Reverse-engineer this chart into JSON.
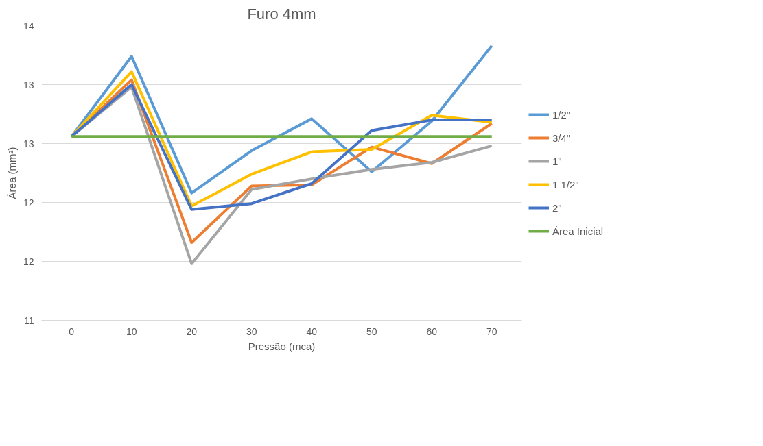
{
  "chart_data": {
    "type": "line",
    "title": "Furo 4mm",
    "xlabel": "Pressão (mca)",
    "ylabel": "Área (mm²)",
    "categories": [
      "0",
      "10",
      "20",
      "30",
      "40",
      "50",
      "60",
      "70"
    ],
    "series": [
      {
        "name": "1/2\"",
        "color": "#5b9bd5",
        "values": [
          12.81,
          13.49,
          12.33,
          12.69,
          12.96,
          12.51,
          12.94,
          13.58
        ]
      },
      {
        "name": "3/4\"",
        "color": "#ed7d31",
        "values": [
          12.81,
          13.29,
          11.91,
          12.39,
          12.4,
          12.72,
          12.58,
          12.92
        ]
      },
      {
        "name": "1\"",
        "color": "#a5a5a5",
        "values": [
          12.81,
          13.23,
          11.73,
          12.36,
          12.45,
          12.53,
          12.59,
          12.73
        ]
      },
      {
        "name": "1 1/2\"",
        "color": "#ffc000",
        "values": [
          12.81,
          13.36,
          12.22,
          12.49,
          12.68,
          12.7,
          12.99,
          12.93
        ]
      },
      {
        "name": "2\"",
        "color": "#4472c4",
        "values": [
          12.81,
          13.25,
          12.19,
          12.24,
          12.41,
          12.86,
          12.95,
          12.95
        ]
      },
      {
        "name": "Área Inicial",
        "color": "#70ad47",
        "values": [
          12.81,
          12.81,
          12.81,
          12.81,
          12.81,
          12.81,
          12.81,
          12.81
        ]
      }
    ],
    "ylim": [
      11.25,
      13.75
    ],
    "yticks": [
      {
        "value": 11.25,
        "label": "11"
      },
      {
        "value": 11.75,
        "label": "12"
      },
      {
        "value": 12.25,
        "label": "12"
      },
      {
        "value": 12.75,
        "label": "13"
      },
      {
        "value": 13.25,
        "label": "13"
      },
      {
        "value": 13.75,
        "label": "14"
      }
    ],
    "grid": "y",
    "legend": "right",
    "marker": "none",
    "line_style": "solid"
  }
}
